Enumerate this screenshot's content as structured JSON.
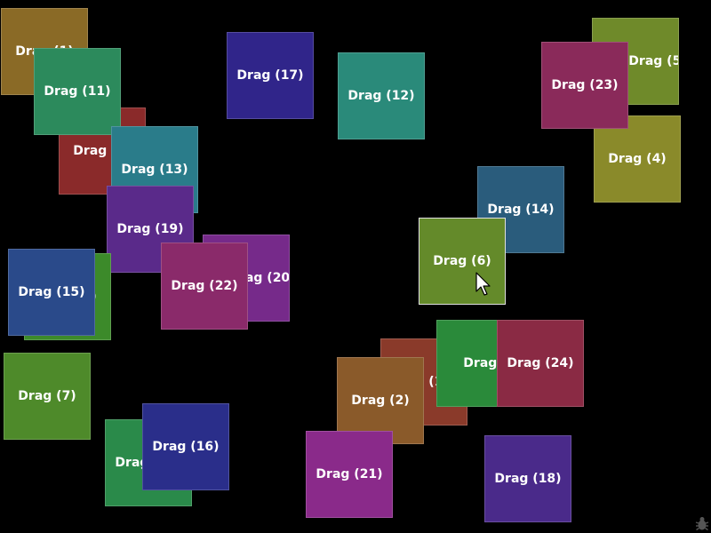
{
  "boxes": [
    {
      "label": "Drag (1)",
      "color": "#8a6a26"
    },
    {
      "label": "Drag (11)",
      "color": "#2c8a5c"
    },
    {
      "label": "Drag (17)",
      "color": "#30258a"
    },
    {
      "label": "Drag (12)",
      "color": "#2a8a7a"
    },
    {
      "label": "Drag (5)",
      "color": "#6f8a2a"
    },
    {
      "label": "Drag (23)",
      "color": "#8a2a5a"
    },
    {
      "label": "Drag (4)",
      "color": "#8a8a2a"
    },
    {
      "label": "Drag (3)",
      "color": "#8a2a2a"
    },
    {
      "label": "Drag (13)",
      "color": "#2a7c8a"
    },
    {
      "label": "Drag (14)",
      "color": "#2a5c7c"
    },
    {
      "label": "Drag (20)",
      "color": "#762a8a"
    },
    {
      "label": "Drag (19)",
      "color": "#5a2a8a"
    },
    {
      "label": "Drag (22)",
      "color": "#8a2a6a"
    },
    {
      "label": "Drag (8)",
      "color": "#3c8a2a"
    },
    {
      "label": "Drag (15)",
      "color": "#2a4a8a"
    },
    {
      "label": "Drag (6)",
      "color": "#648a2a"
    },
    {
      "label": "Drag (10)",
      "color": "#8a3a2a"
    },
    {
      "label": "Drag (9)",
      "color": "#2a8a3a"
    },
    {
      "label": "Drag (24)",
      "color": "#8a2a44"
    },
    {
      "label": "Drag (2)",
      "color": "#8a5a2a"
    },
    {
      "label": "Drag (7)",
      "color": "#4e8a2a"
    },
    {
      "label": "Drag (16)",
      "color": "#2a2e8a"
    },
    {
      "label": "Drag (21)",
      "color": "#8a2a8a"
    },
    {
      "label": "Drag (18)",
      "color": "#4a2a8a"
    },
    {
      "label": "Drag (26)",
      "color": "#2a8a4a"
    }
  ],
  "active_box": "Drag (6)",
  "cursor_icon": "arrow-pointer",
  "corner_icon": "bug-icon"
}
